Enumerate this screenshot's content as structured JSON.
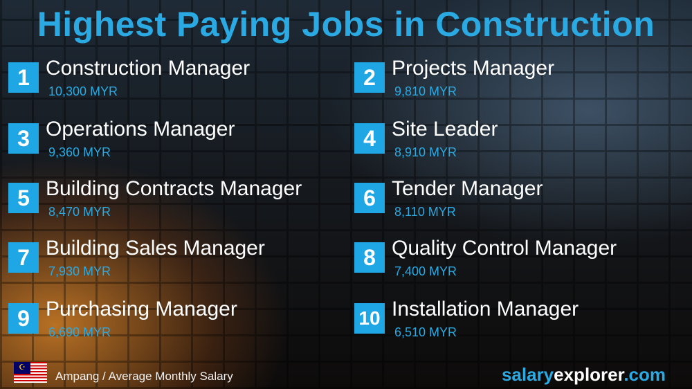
{
  "title": "Highest Paying Jobs in Construction",
  "jobs": [
    {
      "rank": "1",
      "name": "Construction Manager",
      "salary": "10,300 MYR"
    },
    {
      "rank": "2",
      "name": "Projects Manager",
      "salary": "9,810 MYR"
    },
    {
      "rank": "3",
      "name": "Operations Manager",
      "salary": "9,360 MYR"
    },
    {
      "rank": "4",
      "name": "Site Leader",
      "salary": "8,910 MYR"
    },
    {
      "rank": "5",
      "name": "Building Contracts Manager",
      "salary": "8,470 MYR"
    },
    {
      "rank": "6",
      "name": "Tender Manager",
      "salary": "8,110 MYR"
    },
    {
      "rank": "7",
      "name": "Building Sales Manager",
      "salary": "7,930 MYR"
    },
    {
      "rank": "8",
      "name": "Quality Control Manager",
      "salary": "7,400 MYR"
    },
    {
      "rank": "9",
      "name": "Purchasing Manager",
      "salary": "6,690 MYR"
    },
    {
      "rank": "10",
      "name": "Installation Manager",
      "salary": "6,510 MYR"
    }
  ],
  "footer": {
    "location": "Ampang / Average Monthly Salary",
    "flag_icon": "malaysia-flag",
    "brand_part1": "salary",
    "brand_part2": "explorer",
    "brand_part3": ".com"
  },
  "colors": {
    "accent": "#2aa9e2",
    "badge": "#1ea6e5"
  }
}
